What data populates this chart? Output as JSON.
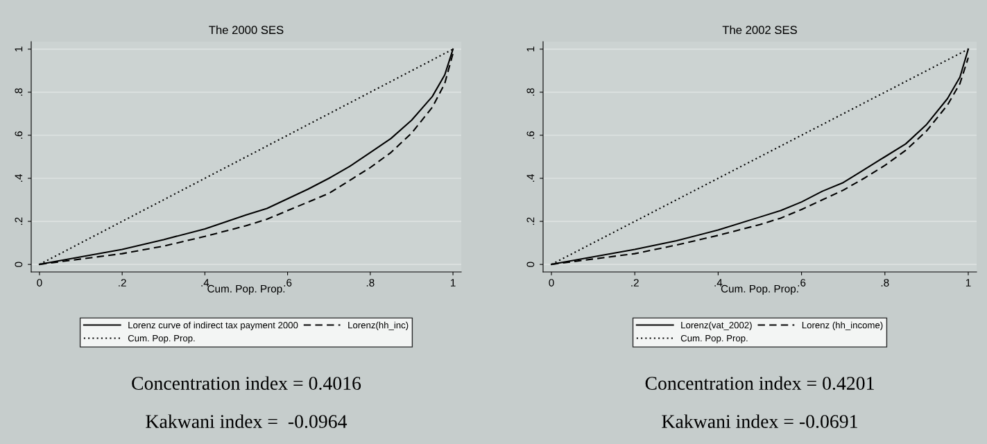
{
  "chart_data": [
    {
      "type": "line",
      "title": "The 2000 SES",
      "xlabel": "Cum. Pop. Prop.",
      "x": [
        0,
        0.1,
        0.2,
        0.3,
        0.4,
        0.5,
        0.55,
        0.6,
        0.65,
        0.7,
        0.75,
        0.8,
        0.85,
        0.9,
        0.95,
        0.98,
        1
      ],
      "series": [
        {
          "name": "Lorenz curve of indirect tax payment 2000",
          "color": "#000000",
          "line_style": "solid",
          "values": [
            0,
            0.035,
            0.07,
            0.115,
            0.165,
            0.23,
            0.26,
            0.305,
            0.35,
            0.4,
            0.455,
            0.52,
            0.585,
            0.67,
            0.78,
            0.88,
            1
          ]
        },
        {
          "name": "Lorenz(hh_inc)",
          "color": "#000000",
          "line_style": "dashed",
          "values": [
            0,
            0.025,
            0.05,
            0.085,
            0.13,
            0.18,
            0.21,
            0.25,
            0.29,
            0.33,
            0.39,
            0.45,
            0.52,
            0.61,
            0.73,
            0.84,
            0.98
          ]
        },
        {
          "name": "Cum. Pop. Prop.",
          "color": "#000000",
          "line_style": "dotted",
          "values": [
            0,
            0.1,
            0.2,
            0.3,
            0.4,
            0.5,
            0.55,
            0.6,
            0.65,
            0.7,
            0.75,
            0.8,
            0.85,
            0.9,
            0.95,
            0.98,
            1
          ]
        }
      ],
      "xlim": [
        -0.02,
        1.02
      ],
      "ylim": [
        -0.035,
        1.035
      ],
      "xticks": [
        0,
        {
          "value": 0.2,
          "label": ".2"
        },
        {
          "value": 0.4,
          "label": ".4"
        },
        {
          "value": 0.6,
          "label": ".6"
        },
        {
          "value": 0.8,
          "label": ".8"
        },
        1
      ],
      "yticks": [
        0,
        {
          "value": 0.2,
          "label": ".2"
        },
        {
          "value": 0.4,
          "label": ".4"
        },
        {
          "value": 0.6,
          "label": ".6"
        },
        {
          "value": 0.8,
          "label": ".8"
        },
        1
      ],
      "grid": "y",
      "legend": "bottom",
      "annotations": [
        "Concentration index = 0.4016",
        "Kakwani index =  -0.0964"
      ]
    },
    {
      "type": "line",
      "title": "The 2002 SES",
      "xlabel": "Cum. Pop. Prop.",
      "x": [
        0,
        0.1,
        0.2,
        0.3,
        0.4,
        0.5,
        0.55,
        0.6,
        0.65,
        0.7,
        0.75,
        0.8,
        0.85,
        0.9,
        0.95,
        0.98,
        1
      ],
      "series": [
        {
          "name": "Lorenz(vat_2002)",
          "color": "#000000",
          "line_style": "solid",
          "values": [
            0,
            0.035,
            0.07,
            0.11,
            0.16,
            0.22,
            0.25,
            0.29,
            0.34,
            0.38,
            0.44,
            0.5,
            0.56,
            0.65,
            0.77,
            0.87,
            1
          ]
        },
        {
          "name": "Lorenz (hh_income)",
          "color": "#000000",
          "line_style": "dashed",
          "values": [
            0,
            0.025,
            0.05,
            0.09,
            0.135,
            0.185,
            0.215,
            0.255,
            0.3,
            0.345,
            0.4,
            0.46,
            0.53,
            0.62,
            0.74,
            0.84,
            0.96
          ]
        },
        {
          "name": "Cum. Pop. Prop.",
          "color": "#000000",
          "line_style": "dotted",
          "values": [
            0,
            0.1,
            0.2,
            0.3,
            0.4,
            0.5,
            0.55,
            0.6,
            0.65,
            0.7,
            0.75,
            0.8,
            0.85,
            0.9,
            0.95,
            0.98,
            1
          ]
        }
      ],
      "xlim": [
        -0.02,
        1.02
      ],
      "ylim": [
        -0.035,
        1.035
      ],
      "xticks": [
        0,
        {
          "value": 0.2,
          "label": ".2"
        },
        {
          "value": 0.4,
          "label": ".4"
        },
        {
          "value": 0.6,
          "label": ".6"
        },
        {
          "value": 0.8,
          "label": ".8"
        },
        1
      ],
      "yticks": [
        0,
        {
          "value": 0.2,
          "label": ".2"
        },
        {
          "value": 0.4,
          "label": ".4"
        },
        {
          "value": 0.6,
          "label": ".6"
        },
        {
          "value": 0.8,
          "label": ".8"
        },
        1
      ],
      "grid": "y",
      "legend": "bottom",
      "annotations": [
        "Concentration index = 0.4201",
        "Kakwani index = -0.0691"
      ]
    }
  ]
}
